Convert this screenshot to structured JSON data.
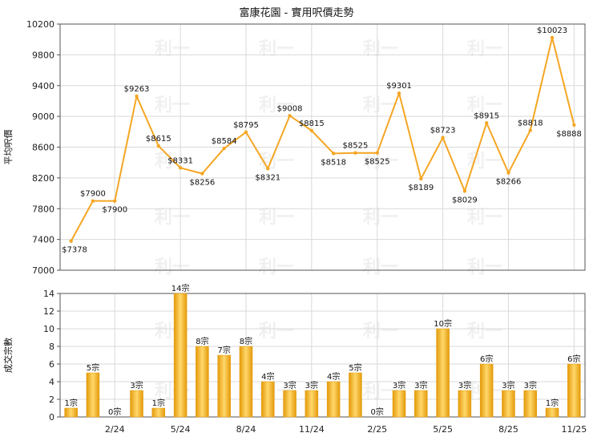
{
  "chart_title": "富康花園 - 實用呎價走勢",
  "watermark_text": "利一",
  "colors": {
    "line": "#f5a623",
    "bar_light": "#ffd86b",
    "bar_dark": "#e49a0a",
    "grid": "#d9d9d9",
    "axis": "#555555"
  },
  "chart_data": [
    {
      "type": "line",
      "ylabel": "平均呎價",
      "ylim": [
        7000,
        10200
      ],
      "yticks": [
        7000,
        7400,
        7800,
        8200,
        8600,
        9000,
        9400,
        9800,
        10200
      ],
      "grid": true,
      "values": [
        7378,
        7900,
        7900,
        9263,
        8615,
        8331,
        8256,
        8584,
        8795,
        8321,
        9008,
        8815,
        8518,
        8525,
        8525,
        9301,
        8189,
        8723,
        8029,
        8915,
        8266,
        8818,
        10023,
        8888
      ],
      "point_labels": [
        "$7378",
        "$7900",
        "$7900",
        "$9263",
        "$8615",
        "$8331",
        "$8256",
        "$8584",
        "$8795",
        "$8321",
        "$9008",
        "$8815",
        "$8518",
        "$8525",
        "$8525",
        "$9301",
        "$8189",
        "$8723",
        "$8029",
        "$8915",
        "$8266",
        "$8818",
        "$10023",
        "$8888"
      ]
    },
    {
      "type": "bar",
      "ylabel": "成交宗數",
      "ylim": [
        0,
        14
      ],
      "yticks": [
        0,
        2,
        4,
        6,
        8,
        10,
        12,
        14
      ],
      "grid": true,
      "values": [
        1,
        5,
        0,
        3,
        1,
        14,
        8,
        7,
        8,
        4,
        3,
        3,
        4,
        5,
        0,
        3,
        3,
        10,
        3,
        6,
        3,
        3,
        1,
        6
      ],
      "bar_labels": [
        "1宗",
        "5宗",
        "0宗",
        "3宗",
        "1宗",
        "14宗",
        "8宗",
        "7宗",
        "8宗",
        "4宗",
        "3宗",
        "3宗",
        "4宗",
        "5宗",
        "0宗",
        "3宗",
        "3宗",
        "10宗",
        "3宗",
        "6宗",
        "3宗",
        "3宗",
        "1宗",
        "6宗"
      ]
    }
  ],
  "x_tick_labels": [
    {
      "index": 2,
      "label": "2/24"
    },
    {
      "index": 5,
      "label": "5/24"
    },
    {
      "index": 8,
      "label": "8/24"
    },
    {
      "index": 11,
      "label": "11/24"
    },
    {
      "index": 14,
      "label": "2/25"
    },
    {
      "index": 17,
      "label": "5/25"
    },
    {
      "index": 20,
      "label": "8/25"
    },
    {
      "index": 23,
      "label": "11/25"
    }
  ]
}
